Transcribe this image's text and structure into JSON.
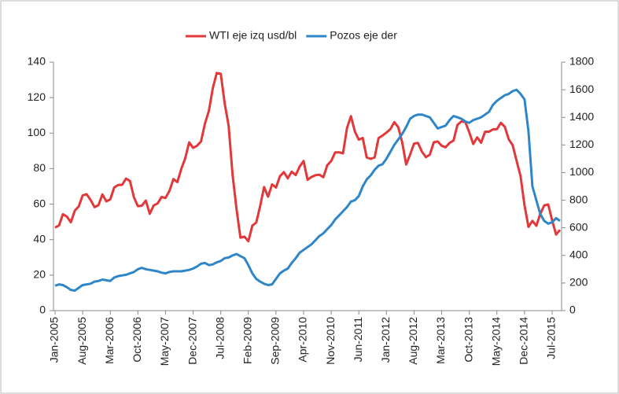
{
  "chart_data": {
    "type": "line",
    "categories": [
      "Jan-2005",
      null,
      null,
      null,
      null,
      null,
      null,
      "Aug-2005",
      null,
      null,
      null,
      null,
      null,
      null,
      "Mar-2006",
      null,
      null,
      null,
      null,
      null,
      null,
      "Oct-2006",
      null,
      null,
      null,
      null,
      null,
      null,
      "May-2007",
      null,
      null,
      null,
      null,
      null,
      null,
      "Dec-2007",
      null,
      null,
      null,
      null,
      null,
      null,
      "Jul-2008",
      null,
      null,
      null,
      null,
      null,
      null,
      "Feb-2009",
      null,
      null,
      null,
      null,
      null,
      null,
      "Sep-2009",
      null,
      null,
      null,
      null,
      null,
      null,
      "Apr-2010",
      null,
      null,
      null,
      null,
      null,
      null,
      "Nov-2010",
      null,
      null,
      null,
      null,
      null,
      null,
      "Jun-2011",
      null,
      null,
      null,
      null,
      null,
      null,
      "Jan-2012",
      null,
      null,
      null,
      null,
      null,
      null,
      "Aug-2012",
      null,
      null,
      null,
      null,
      null,
      null,
      "Mar-2013",
      null,
      null,
      null,
      null,
      null,
      null,
      "Oct-2013",
      null,
      null,
      null,
      null,
      null,
      null,
      "May-2014",
      null,
      null,
      null,
      null,
      null,
      null,
      "Dec-2014",
      null,
      null,
      null,
      null,
      null,
      null,
      "Jul-2015",
      null,
      null
    ],
    "series": [
      {
        "name": "WTI eje izq usd/bl",
        "color": "#e2383a",
        "values": [
          46.8,
          48.0,
          54.3,
          53.0,
          49.8,
          56.3,
          58.7,
          64.9,
          65.6,
          62.4,
          58.3,
          59.4,
          65.5,
          61.6,
          62.7,
          69.4,
          70.8,
          70.9,
          74.4,
          73.0,
          63.8,
          58.9,
          59.1,
          62.0,
          54.6,
          59.3,
          60.4,
          64.0,
          63.5,
          67.5,
          74.1,
          72.4,
          79.9,
          85.8,
          94.8,
          91.7,
          92.9,
          95.4,
          105.4,
          112.6,
          125.4,
          133.9,
          133.4,
          116.7,
          104.1,
          76.6,
          57.3,
          41.1,
          41.7,
          39.1,
          47.9,
          49.6,
          59.0,
          69.6,
          64.2,
          71.1,
          69.4,
          75.7,
          78.0,
          74.5,
          78.3,
          76.4,
          81.2,
          84.3,
          73.7,
          75.3,
          76.3,
          76.6,
          75.2,
          81.9,
          84.3,
          89.2,
          89.2,
          88.6,
          102.9,
          109.5,
          100.9,
          96.3,
          97.3,
          86.3,
          85.5,
          86.3,
          97.2,
          98.6,
          100.3,
          102.2,
          106.2,
          103.3,
          94.7,
          82.3,
          87.9,
          94.1,
          94.5,
          89.5,
          86.5,
          87.9,
          94.8,
          95.3,
          92.9,
          92.0,
          94.5,
          95.8,
          104.6,
          106.6,
          106.3,
          100.5,
          93.9,
          97.6,
          94.6,
          100.8,
          100.8,
          102.1,
          102.2,
          105.8,
          103.6,
          96.5,
          93.2,
          84.4,
          75.8,
          59.3,
          47.2,
          50.6,
          47.8,
          54.5,
          59.3,
          59.8,
          50.9,
          42.9,
          45.5
        ]
      },
      {
        "name": "Pozos eje der",
        "color": "#2e86c8",
        "axis": "y2",
        "values": [
          180,
          190,
          185,
          170,
          150,
          145,
          165,
          185,
          190,
          195,
          210,
          215,
          225,
          220,
          215,
          240,
          250,
          255,
          260,
          270,
          280,
          300,
          310,
          300,
          295,
          290,
          285,
          275,
          270,
          280,
          285,
          285,
          285,
          290,
          295,
          305,
          320,
          340,
          345,
          330,
          335,
          350,
          360,
          380,
          385,
          400,
          410,
          395,
          380,
          330,
          270,
          230,
          210,
          195,
          185,
          190,
          230,
          270,
          290,
          305,
          345,
          380,
          420,
          440,
          460,
          480,
          510,
          540,
          560,
          590,
          620,
          660,
          690,
          720,
          750,
          790,
          800,
          830,
          900,
          950,
          980,
          1020,
          1050,
          1060,
          1100,
          1150,
          1200,
          1240,
          1280,
          1330,
          1390,
          1410,
          1420,
          1420,
          1410,
          1400,
          1360,
          1320,
          1330,
          1340,
          1380,
          1410,
          1400,
          1390,
          1370,
          1360,
          1380,
          1390,
          1400,
          1420,
          1440,
          1490,
          1520,
          1540,
          1560,
          1570,
          1590,
          1600,
          1570,
          1530,
          1300,
          900,
          800,
          700,
          650,
          630,
          640,
          670,
          650
        ]
      }
    ],
    "ylim": [
      0,
      140
    ],
    "yticks": [
      0,
      20,
      40,
      60,
      80,
      100,
      120,
      140
    ],
    "y2lim": [
      0,
      1800
    ],
    "y2ticks": [
      0,
      200,
      400,
      600,
      800,
      1000,
      1200,
      1400,
      1600,
      1800
    ],
    "legend": "top"
  }
}
